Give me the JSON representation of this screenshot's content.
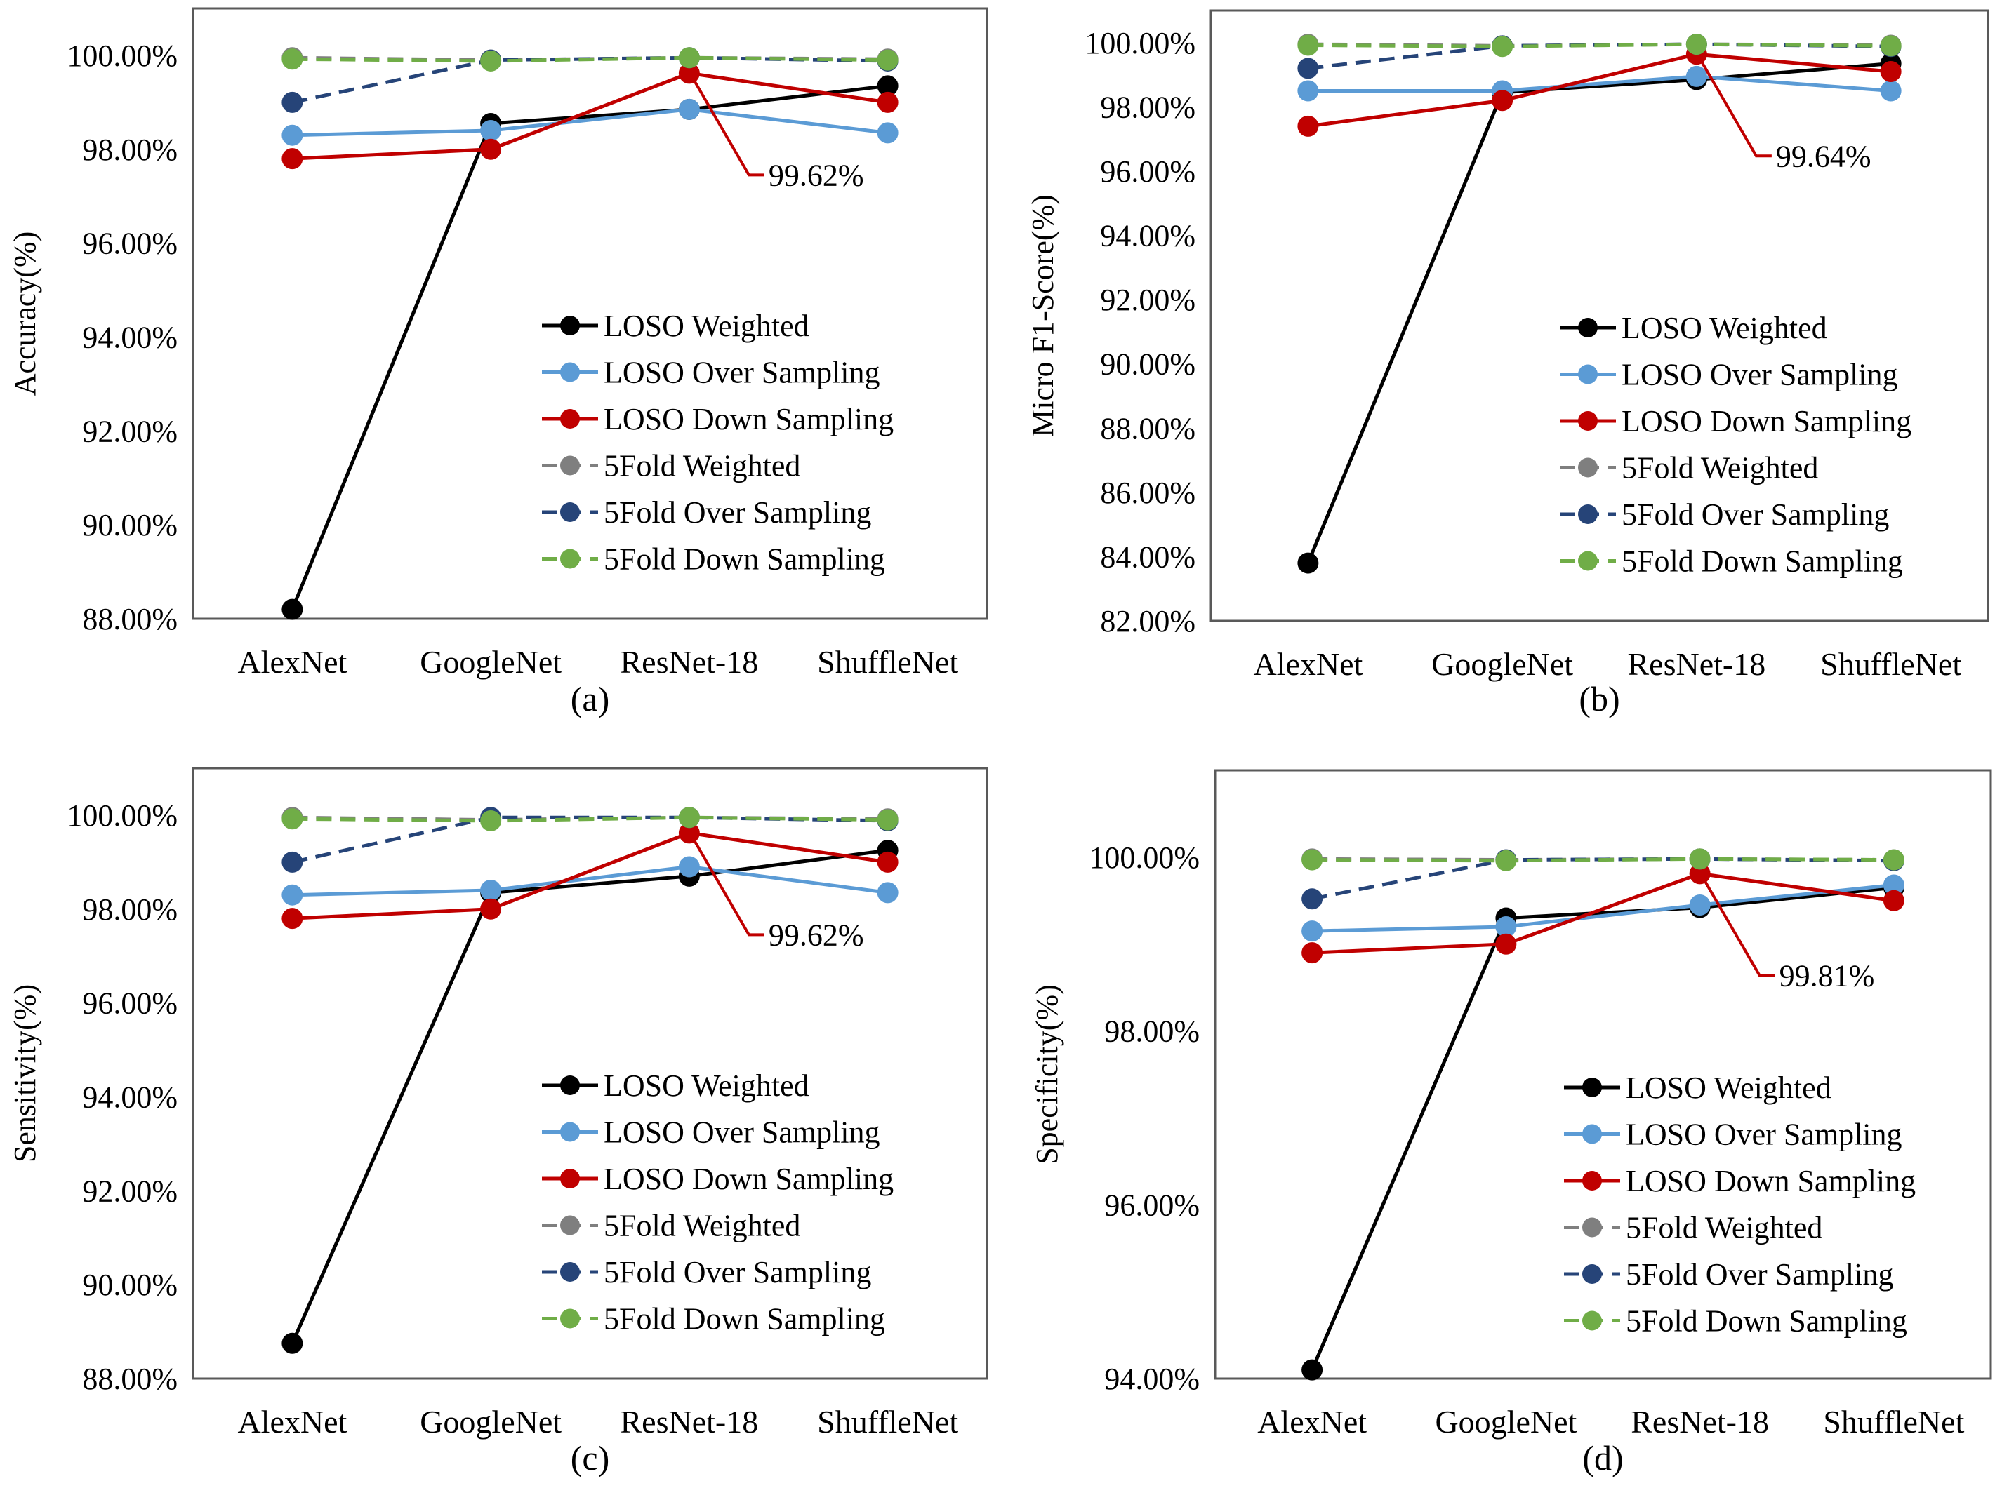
{
  "series_styles": [
    {
      "name": "LOSO Weighted",
      "color": "#000000",
      "dash": false
    },
    {
      "name": "LOSO Over Sampling",
      "color": "#5b9bd5",
      "dash": false
    },
    {
      "name": "LOSO Down Sampling",
      "color": "#c00000",
      "dash": false
    },
    {
      "name": "5Fold Weighted",
      "color": "#7f7f7f",
      "dash": true
    },
    {
      "name": "5Fold Over Sampling",
      "color": "#264478",
      "dash": true
    },
    {
      "name": "5Fold Down Sampling",
      "color": "#70ad47",
      "dash": true
    }
  ],
  "chart_data": [
    {
      "type": "line",
      "panel_label": "(a)",
      "ylabel": "Accuracy(%)",
      "categories": [
        "AlexNet",
        "GoogleNet",
        "ResNet-18",
        "ShuffleNet"
      ],
      "ylim": [
        88,
        101
      ],
      "yticks": [
        88,
        90,
        92,
        94,
        96,
        98,
        100
      ],
      "ytick_labels": [
        "88.00%",
        "90.00%",
        "92.00%",
        "94.00%",
        "96.00%",
        "98.00%",
        "100.00%"
      ],
      "annotation": {
        "text": "99.62%",
        "category": "ResNet-18",
        "series": "LOSO Down Sampling",
        "value": 99.62
      },
      "legend_position": "center-right",
      "series": [
        {
          "name": "LOSO Weighted",
          "values": [
            88.2,
            98.55,
            98.85,
            99.35
          ]
        },
        {
          "name": "LOSO Over Sampling",
          "values": [
            98.3,
            98.4,
            98.85,
            98.35
          ]
        },
        {
          "name": "LOSO Down Sampling",
          "values": [
            97.8,
            98.0,
            99.62,
            99.0
          ]
        },
        {
          "name": "5Fold Weighted",
          "values": [
            99.95,
            99.9,
            99.95,
            99.92
          ]
        },
        {
          "name": "5Fold Over Sampling",
          "values": [
            99.0,
            99.9,
            99.95,
            99.88
          ]
        },
        {
          "name": "5Fold Down Sampling",
          "values": [
            99.92,
            99.88,
            99.95,
            99.9
          ]
        }
      ]
    },
    {
      "type": "line",
      "panel_label": "(b)",
      "ylabel": "Micro F1-Score(%)",
      "categories": [
        "AlexNet",
        "GoogleNet",
        "ResNet-18",
        "ShuffleNet"
      ],
      "ylim": [
        82,
        101
      ],
      "yticks": [
        82,
        84,
        86,
        88,
        90,
        92,
        94,
        96,
        98,
        100
      ],
      "ytick_labels": [
        "82.00%",
        "84.00%",
        "86.00%",
        "88.00%",
        "90.00%",
        "92.00%",
        "94.00%",
        "96.00%",
        "98.00%",
        "100.00%"
      ],
      "annotation": {
        "text": "99.64%",
        "category": "ResNet-18",
        "series": "LOSO Down Sampling",
        "value": 99.64
      },
      "legend_position": "center-right",
      "series": [
        {
          "name": "LOSO Weighted",
          "values": [
            83.8,
            98.45,
            98.85,
            99.35
          ]
        },
        {
          "name": "LOSO Over Sampling",
          "values": [
            98.5,
            98.5,
            98.95,
            98.5
          ]
        },
        {
          "name": "LOSO Down Sampling",
          "values": [
            97.4,
            98.2,
            99.64,
            99.1
          ]
        },
        {
          "name": "5Fold Weighted",
          "values": [
            99.95,
            99.9,
            99.95,
            99.92
          ]
        },
        {
          "name": "5Fold Over Sampling",
          "values": [
            99.2,
            99.9,
            99.95,
            99.88
          ]
        },
        {
          "name": "5Fold Down Sampling",
          "values": [
            99.92,
            99.88,
            99.95,
            99.9
          ]
        }
      ]
    },
    {
      "type": "line",
      "panel_label": "(c)",
      "ylabel": "Sensitivity(%)",
      "categories": [
        "AlexNet",
        "GoogleNet",
        "ResNet-18",
        "ShuffleNet"
      ],
      "ylim": [
        88,
        101
      ],
      "yticks": [
        88,
        90,
        92,
        94,
        96,
        98,
        100
      ],
      "ytick_labels": [
        "88.00%",
        "90.00%",
        "92.00%",
        "94.00%",
        "96.00%",
        "98.00%",
        "100.00%"
      ],
      "annotation": {
        "text": "99.62%",
        "category": "ResNet-18",
        "series": "LOSO Down Sampling",
        "value": 99.62
      },
      "legend_position": "center-right",
      "series": [
        {
          "name": "LOSO Weighted",
          "values": [
            88.75,
            98.35,
            98.7,
            99.25
          ]
        },
        {
          "name": "LOSO Over Sampling",
          "values": [
            98.3,
            98.4,
            98.9,
            98.35
          ]
        },
        {
          "name": "LOSO Down Sampling",
          "values": [
            97.8,
            98.0,
            99.62,
            99.0
          ]
        },
        {
          "name": "5Fold Weighted",
          "values": [
            99.95,
            99.9,
            99.95,
            99.92
          ]
        },
        {
          "name": "5Fold Over Sampling",
          "values": [
            99.0,
            99.95,
            99.95,
            99.88
          ]
        },
        {
          "name": "5Fold Down Sampling",
          "values": [
            99.92,
            99.88,
            99.95,
            99.9
          ]
        }
      ]
    },
    {
      "type": "line",
      "panel_label": "(d)",
      "ylabel": "Specificity(%)",
      "categories": [
        "AlexNet",
        "GoogleNet",
        "ResNet-18",
        "ShuffleNet"
      ],
      "ylim": [
        94,
        101
      ],
      "yticks": [
        94,
        96,
        98,
        100
      ],
      "ytick_labels": [
        "94.00%",
        "96.00%",
        "98.00%",
        "100.00%"
      ],
      "annotation": {
        "text": "99.81%",
        "category": "ResNet-18",
        "series": "LOSO Down Sampling",
        "value": 99.81
      },
      "legend_position": "center-right",
      "series": [
        {
          "name": "LOSO Weighted",
          "values": [
            94.1,
            99.3,
            99.42,
            99.65
          ]
        },
        {
          "name": "LOSO Over Sampling",
          "values": [
            99.15,
            99.2,
            99.45,
            99.68
          ]
        },
        {
          "name": "LOSO Down Sampling",
          "values": [
            98.9,
            99.0,
            99.81,
            99.5
          ]
        },
        {
          "name": "5Fold Weighted",
          "values": [
            99.98,
            99.97,
            99.98,
            99.97
          ]
        },
        {
          "name": "5Fold Over Sampling",
          "values": [
            99.52,
            99.97,
            99.98,
            99.96
          ]
        },
        {
          "name": "5Fold Down Sampling",
          "values": [
            99.97,
            99.96,
            99.98,
            99.97
          ]
        }
      ]
    }
  ]
}
